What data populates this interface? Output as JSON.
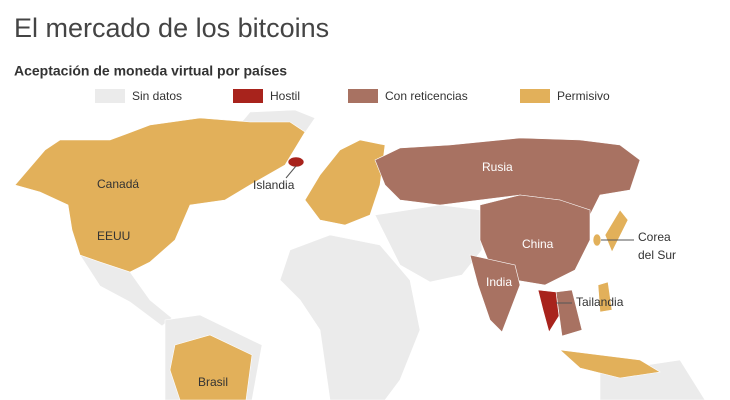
{
  "title": "El mercado de los bitcoins",
  "subtitle": "Aceptación de moneda virtual por países",
  "legend": [
    {
      "label": "Sin datos",
      "color": "#ebebeb"
    },
    {
      "label": "Hostil",
      "color": "#a8231c"
    },
    {
      "label": "Con reticencias",
      "color": "#a87262"
    },
    {
      "label": "Permisivo",
      "color": "#e2b05a"
    }
  ],
  "labels": {
    "canada": "Canadá",
    "eeuu": "EEUU",
    "islandia": "Islandia",
    "rusia": "Rusia",
    "china": "China",
    "india": "India",
    "corea": [
      "Corea",
      "del Sur"
    ],
    "tailandia": "Tailandia",
    "brasil": "Brasil"
  }
}
